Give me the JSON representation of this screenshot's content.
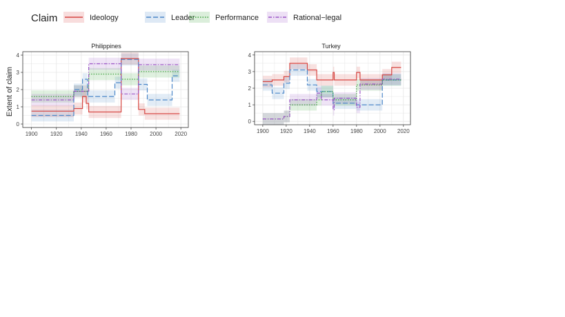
{
  "legend": {
    "title": "Claim",
    "items": [
      {
        "name": "Ideology",
        "color": "#d64541",
        "dash": "solid"
      },
      {
        "name": "Leader",
        "color": "#4a86c8",
        "dash": "longdash"
      },
      {
        "name": "Performance",
        "color": "#3aa03a",
        "dash": "dotted"
      },
      {
        "name": "Rational−legal",
        "color": "#9b55c6",
        "dash": "dotdash"
      }
    ]
  },
  "chart_data": [
    {
      "type": "line",
      "title": "Philippines",
      "xlabel": "",
      "ylabel": "Extent of claim",
      "xlim": [
        1893,
        2026
      ],
      "ylim": [
        -0.2,
        4.2
      ],
      "xticks": [
        1900,
        1920,
        1940,
        1960,
        1980,
        2000,
        2020
      ],
      "yticks": [
        0,
        1,
        2,
        3,
        4
      ],
      "grid": true,
      "series": [
        {
          "name": "Ideology",
          "color": "#d64541",
          "ci": 0.35,
          "x": [
            1900,
            1934,
            1934,
            1941,
            1941,
            1944,
            1944,
            1946,
            1946,
            1972,
            1972,
            1986,
            1986,
            1991,
            1991,
            2019
          ],
          "y": [
            0.75,
            0.75,
            0.9,
            0.9,
            1.6,
            1.6,
            1.2,
            1.2,
            0.7,
            0.7,
            3.8,
            3.8,
            0.85,
            0.85,
            0.6,
            0.6
          ]
        },
        {
          "name": "Leader",
          "color": "#4a86c8",
          "ci": 0.35,
          "x": [
            1900,
            1934,
            1934,
            1941,
            1941,
            1945,
            1945,
            1967,
            1967,
            1972,
            1972,
            1986,
            1986,
            1993,
            1993,
            2013,
            2013,
            2019
          ],
          "y": [
            0.5,
            0.5,
            2.0,
            2.0,
            2.6,
            2.6,
            1.6,
            1.6,
            2.4,
            2.4,
            3.75,
            3.75,
            2.3,
            2.3,
            1.4,
            1.4,
            2.8,
            2.8
          ]
        },
        {
          "name": "Performance",
          "color": "#3aa03a",
          "ci": 0.35,
          "x": [
            1900,
            1934,
            1934,
            1946,
            1946,
            1972,
            1972,
            1986,
            1986,
            2019
          ],
          "y": [
            1.6,
            1.6,
            1.9,
            1.9,
            2.9,
            2.9,
            2.6,
            2.6,
            3.05,
            3.05
          ]
        },
        {
          "name": "Rational−legal",
          "color": "#9b55c6",
          "ci": 0.35,
          "x": [
            1900,
            1934,
            1934,
            1946,
            1946,
            1972,
            1972,
            1986,
            1986,
            2019
          ],
          "y": [
            1.4,
            1.4,
            1.9,
            1.9,
            3.5,
            3.5,
            1.75,
            1.75,
            3.45,
            3.45
          ]
        }
      ]
    },
    {
      "type": "line",
      "title": "Turkey",
      "xlabel": "",
      "ylabel": "",
      "xlim": [
        1893,
        2026
      ],
      "ylim": [
        -0.2,
        4.2
      ],
      "xticks": [
        1900,
        1920,
        1940,
        1960,
        1980,
        2000,
        2020
      ],
      "yticks": [
        0,
        1,
        2,
        3,
        4
      ],
      "grid": true,
      "series": [
        {
          "name": "Ideology",
          "color": "#d64541",
          "ci": 0.35,
          "x": [
            1900,
            1908,
            1908,
            1918,
            1918,
            1923,
            1923,
            1938,
            1938,
            1946,
            1946,
            1960,
            1960,
            1961,
            1961,
            1980,
            1980,
            1983,
            1983,
            2002,
            2002,
            2010,
            2010,
            2018
          ],
          "y": [
            2.4,
            2.4,
            2.5,
            2.5,
            2.7,
            2.7,
            3.5,
            3.5,
            3.1,
            3.1,
            2.5,
            2.5,
            2.95,
            2.95,
            2.5,
            2.5,
            2.95,
            2.95,
            2.5,
            2.5,
            2.8,
            2.8,
            3.25,
            3.25
          ]
        },
        {
          "name": "Leader",
          "color": "#4a86c8",
          "ci": 0.35,
          "x": [
            1900,
            1908,
            1908,
            1918,
            1918,
            1923,
            1923,
            1938,
            1938,
            1946,
            1946,
            1960,
            1960,
            1980,
            1980,
            2002,
            2002,
            2018
          ],
          "y": [
            2.2,
            2.2,
            1.7,
            1.7,
            2.3,
            2.3,
            3.1,
            3.1,
            2.2,
            2.2,
            1.8,
            1.8,
            1.1,
            1.1,
            1.0,
            1.0,
            2.5,
            2.5
          ]
        },
        {
          "name": "Performance",
          "color": "#3aa03a",
          "ci": 0.35,
          "x": [
            1900,
            1918,
            1918,
            1923,
            1923,
            1946,
            1946,
            1950,
            1950,
            1960,
            1960,
            1980,
            1980,
            2002,
            2002,
            2018
          ],
          "y": [
            0.15,
            0.15,
            0.3,
            0.3,
            1.0,
            1.0,
            1.3,
            1.3,
            1.8,
            1.8,
            1.3,
            1.3,
            2.2,
            2.2,
            2.5,
            2.5
          ]
        },
        {
          "name": "Rational−legal",
          "color": "#9b55c6",
          "ci": 0.35,
          "x": [
            1900,
            1918,
            1918,
            1923,
            1923,
            1946,
            1946,
            1950,
            1950,
            1960,
            1960,
            1961,
            1961,
            1980,
            1980,
            1983,
            1983,
            2002,
            2002,
            2018
          ],
          "y": [
            0.15,
            0.15,
            0.3,
            0.3,
            1.3,
            1.3,
            1.7,
            1.7,
            1.3,
            1.3,
            0.7,
            0.7,
            1.4,
            1.4,
            0.85,
            0.85,
            2.25,
            2.25,
            2.55,
            2.55
          ]
        }
      ]
    }
  ]
}
